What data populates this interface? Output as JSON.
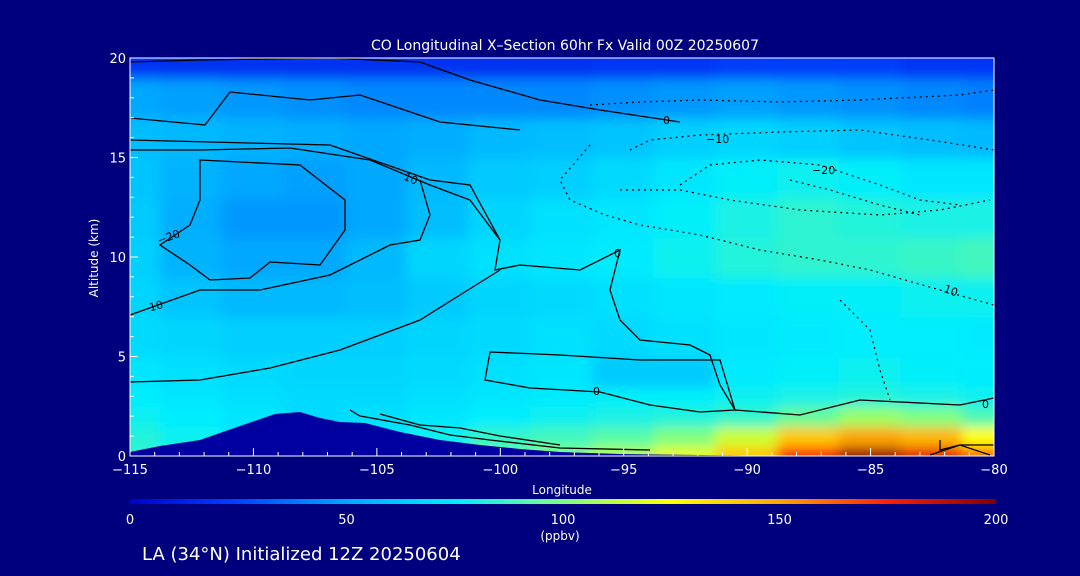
{
  "colors": {
    "background": "#00007f",
    "terrain": "#0000a0",
    "contour_line": "#000000",
    "text": "#ffffff",
    "colormap": [
      "#0000cc",
      "#0044ff",
      "#00a8ff",
      "#00eeff",
      "#80ff80",
      "#ffff00",
      "#ffa500",
      "#ff2000",
      "#800000"
    ]
  },
  "header": {
    "title": "CO Longitudinal X–Section 60hr  Fx Valid 00Z 20250607"
  },
  "footer": {
    "caption": "LA (34°N) Initialized 12Z 20250604"
  },
  "chart_data": {
    "type": "heatmap",
    "title": "CO Longitudinal X–Section 60hr  Fx Valid 00Z 20250607",
    "xlabel": "Longitude",
    "ylabel": "Altitude (km)",
    "xlim": [
      -115,
      -80
    ],
    "ylim": [
      0,
      20
    ],
    "xticks": [
      -115,
      -110,
      -105,
      -100,
      -95,
      -90,
      -85,
      -80
    ],
    "xtick_labels": [
      "−115",
      "−110",
      "−105",
      "−100",
      "−95",
      "−90",
      "−85",
      "−80"
    ],
    "yticks": [
      0,
      5,
      10,
      15,
      20
    ],
    "ytick_labels": [
      "0",
      "5",
      "10",
      "15",
      "20"
    ],
    "colorbar": {
      "min": 0,
      "max": 200,
      "ticks": [
        0,
        50,
        100,
        150,
        200
      ],
      "tick_labels": [
        "0",
        "50",
        "100",
        "150",
        "200"
      ],
      "unit": "(ppbv)"
    },
    "x": [
      -115,
      -112.5,
      -110,
      -107.5,
      -105,
      -102.5,
      -100,
      -97.5,
      -95,
      -92.5,
      -90,
      -87.5,
      -85,
      -82.5,
      -80
    ],
    "y": [
      0,
      1,
      2,
      3,
      4,
      6,
      8,
      10,
      12,
      14,
      16,
      18,
      20
    ],
    "z": [
      [
        85,
        80,
        70,
        65,
        70,
        80,
        95,
        100,
        110,
        120,
        140,
        175,
        195,
        180,
        160
      ],
      [
        82,
        78,
        72,
        68,
        72,
        78,
        85,
        88,
        92,
        100,
        115,
        140,
        150,
        145,
        125
      ],
      [
        78,
        75,
        72,
        68,
        70,
        72,
        75,
        78,
        80,
        82,
        85,
        95,
        105,
        100,
        90
      ],
      [
        75,
        72,
        70,
        68,
        68,
        70,
        72,
        74,
        76,
        76,
        78,
        80,
        82,
        80,
        78
      ],
      [
        72,
        70,
        68,
        66,
        66,
        68,
        70,
        72,
        62,
        62,
        74,
        76,
        78,
        76,
        75
      ],
      [
        68,
        66,
        64,
        64,
        64,
        66,
        68,
        70,
        68,
        70,
        72,
        74,
        75,
        75,
        74
      ],
      [
        66,
        60,
        56,
        56,
        58,
        62,
        66,
        68,
        70,
        72,
        74,
        76,
        76,
        78,
        78
      ],
      [
        64,
        54,
        50,
        50,
        56,
        66,
        70,
        72,
        74,
        78,
        82,
        84,
        84,
        86,
        88
      ],
      [
        62,
        52,
        46,
        46,
        50,
        58,
        66,
        70,
        72,
        76,
        80,
        84,
        82,
        80,
        80
      ],
      [
        60,
        54,
        50,
        48,
        50,
        56,
        62,
        64,
        68,
        72,
        76,
        78,
        76,
        72,
        72
      ],
      [
        58,
        56,
        54,
        52,
        50,
        52,
        56,
        58,
        60,
        64,
        66,
        64,
        60,
        58,
        56
      ],
      [
        50,
        48,
        46,
        44,
        42,
        42,
        42,
        42,
        44,
        46,
        48,
        46,
        44,
        42,
        40
      ],
      [
        20,
        18,
        18,
        18,
        18,
        18,
        18,
        18,
        20,
        20,
        22,
        22,
        22,
        20,
        20
      ]
    ],
    "contour_labels": [
      "0",
      "−10",
      "−20",
      "10",
      "−20",
      "10",
      "0",
      "10",
      "0",
      "0"
    ]
  }
}
